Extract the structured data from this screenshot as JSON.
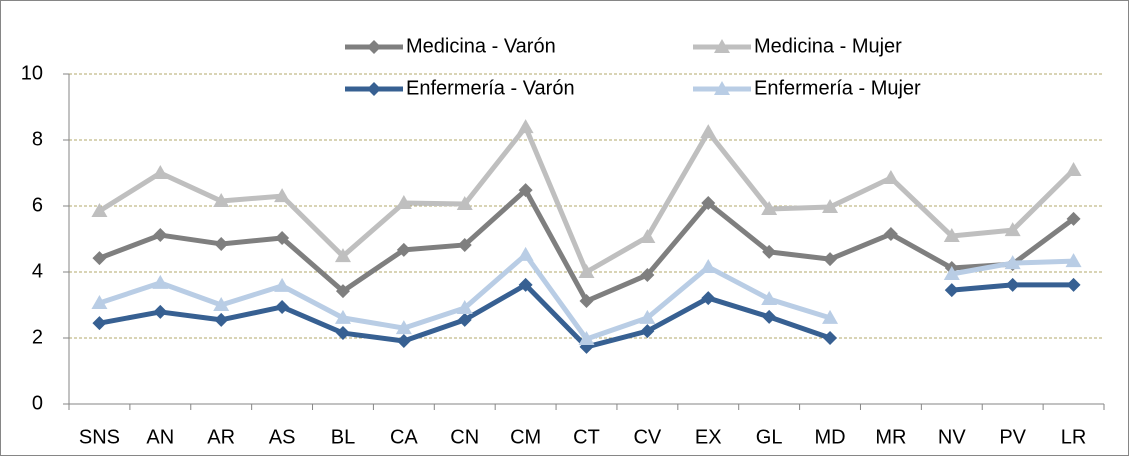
{
  "chart_data": {
    "type": "line",
    "categories": [
      "SNS",
      "AN",
      "AR",
      "AS",
      "BL",
      "CA",
      "CN",
      "CM",
      "CT",
      "CV",
      "EX",
      "GL",
      "MD",
      "MR",
      "NV",
      "PV",
      "LR"
    ],
    "series": [
      {
        "name": "Medicina - Varón",
        "color": "#7f7f7f",
        "marker": "diamond",
        "values": [
          4.42,
          5.12,
          4.85,
          5.03,
          3.42,
          4.67,
          4.82,
          6.48,
          3.12,
          3.91,
          6.09,
          4.61,
          4.39,
          5.15,
          4.12,
          4.24,
          5.61
        ]
      },
      {
        "name": "Medicina - Mujer",
        "color": "#bfbfbf",
        "marker": "triangle",
        "values": [
          5.85,
          7.0,
          6.15,
          6.3,
          4.48,
          6.09,
          6.06,
          8.39,
          4.0,
          5.06,
          8.24,
          5.91,
          5.97,
          6.85,
          5.09,
          5.27,
          7.09
        ]
      },
      {
        "name": "Enfermería - Varón",
        "color": "#376092",
        "marker": "diamond",
        "values": [
          2.45,
          2.79,
          2.55,
          2.94,
          2.15,
          1.91,
          2.55,
          3.61,
          1.73,
          2.21,
          3.21,
          2.64,
          2.0,
          null,
          3.45,
          3.61,
          3.61
        ]
      },
      {
        "name": "Enfermería - Mujer",
        "color": "#b9cde5",
        "marker": "triangle",
        "values": [
          3.06,
          3.67,
          3.0,
          3.58,
          2.61,
          2.3,
          2.91,
          4.52,
          1.97,
          2.61,
          4.15,
          3.18,
          2.61,
          null,
          3.94,
          4.27,
          4.33
        ]
      }
    ],
    "ylim": [
      0,
      10
    ],
    "yticks": [
      0,
      2,
      4,
      6,
      8,
      10
    ],
    "grid": true,
    "legend": "top"
  }
}
